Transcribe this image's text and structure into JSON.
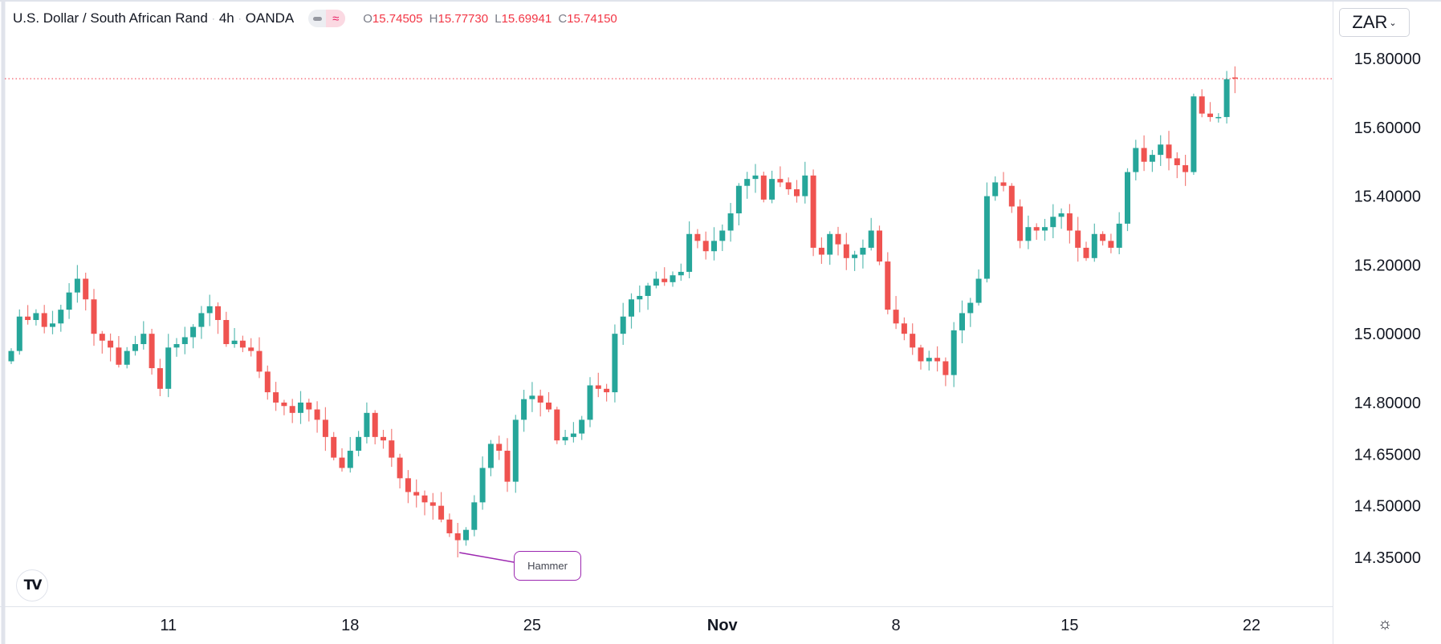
{
  "header": {
    "symbol": "U.S. Dollar / South African Rand",
    "interval": "4h",
    "exchange": "OANDA",
    "sep": "·",
    "indicator_icon": "wave-icon",
    "o_label": "O",
    "o": "15.74505",
    "h_label": "H",
    "h": "15.77730",
    "l_label": "L",
    "l": "15.69941",
    "c_label": "C",
    "c": "15.74150"
  },
  "currency_button": {
    "label": "ZAR",
    "chevron": "⌄"
  },
  "logo_text": "TV",
  "settings_icon": "☼",
  "colors": {
    "up": "#26a69a",
    "down": "#ef5350",
    "last_price_line": "#f23645",
    "annotation": "#9c27b0"
  },
  "chart_data": {
    "type": "candlestick",
    "title": "U.S. Dollar / South African Rand · 4h · OANDA",
    "ylim": [
      14.35,
      15.8
    ],
    "y_ticks": [
      "15.80000",
      "15.60000",
      "15.40000",
      "15.20000",
      "15.00000",
      "14.80000",
      "14.65000",
      "14.50000",
      "14.35000"
    ],
    "y_tick_values": [
      15.8,
      15.6,
      15.4,
      15.2,
      15.0,
      14.8,
      14.65,
      14.5,
      14.35
    ],
    "x_ticks": [
      {
        "label": "11",
        "index": 19
      },
      {
        "label": "18",
        "index": 41
      },
      {
        "label": "25",
        "index": 63
      },
      {
        "label": "Nov",
        "index": 86
      },
      {
        "label": "8",
        "index": 107
      },
      {
        "label": "15",
        "index": 128
      },
      {
        "label": "22",
        "index": 150
      }
    ],
    "first_close": 14.92,
    "closes": [
      14.95,
      15.05,
      15.04,
      15.06,
      15.02,
      15.03,
      15.07,
      15.12,
      15.16,
      15.1,
      15.0,
      14.98,
      14.96,
      14.91,
      14.95,
      14.97,
      15.0,
      14.9,
      14.84,
      14.96,
      14.97,
      14.99,
      15.02,
      15.06,
      15.08,
      15.04,
      14.97,
      14.98,
      14.96,
      14.95,
      14.89,
      14.83,
      14.8,
      14.79,
      14.77,
      14.8,
      14.78,
      14.75,
      14.7,
      14.64,
      14.61,
      14.66,
      14.7,
      14.77,
      14.7,
      14.69,
      14.64,
      14.58,
      14.54,
      14.53,
      14.51,
      14.5,
      14.46,
      14.42,
      14.4,
      14.43,
      14.51,
      14.61,
      14.68,
      14.66,
      14.57,
      14.75,
      14.81,
      14.82,
      14.8,
      14.78,
      14.69,
      14.7,
      14.71,
      14.75,
      14.85,
      14.84,
      14.83,
      15.0,
      15.05,
      15.1,
      15.11,
      15.14,
      15.16,
      15.15,
      15.17,
      15.18,
      15.29,
      15.27,
      15.24,
      15.27,
      15.3,
      15.35,
      15.43,
      15.45,
      15.46,
      15.39,
      15.45,
      15.44,
      15.42,
      15.4,
      15.46,
      15.25,
      15.23,
      15.29,
      15.26,
      15.22,
      15.23,
      15.25,
      15.3,
      15.21,
      15.07,
      15.03,
      15.0,
      14.96,
      14.92,
      14.93,
      14.92,
      14.88,
      15.01,
      15.06,
      15.09,
      15.16,
      15.4,
      15.44,
      15.43,
      15.37,
      15.27,
      15.31,
      15.3,
      15.31,
      15.34,
      15.35,
      15.3,
      15.25,
      15.22,
      15.29,
      15.27,
      15.25,
      15.32,
      15.47,
      15.54,
      15.5,
      15.52,
      15.55,
      15.51,
      15.49,
      15.47,
      15.69,
      15.64,
      15.63,
      15.63,
      15.74,
      15.7415
    ],
    "last_candle": {
      "open": 15.74505,
      "high": 15.7773,
      "low": 15.69941,
      "close": 15.7415
    },
    "last_price": 15.7415,
    "annotations": [
      {
        "text": "Hammer",
        "index": 54,
        "low": 14.35
      }
    ]
  }
}
